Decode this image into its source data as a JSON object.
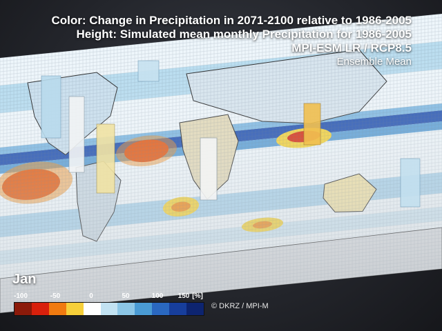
{
  "title": {
    "line1": "Color: Change in Precipitation in 2071-2100 relative to 1986-2005",
    "line2": "Height: Simulated mean monthly Precipitation for 1986-2005",
    "line3": "MPI-ESM LR / RCP8.5",
    "line4": "Ensemble Mean"
  },
  "month": "Jan",
  "legend": {
    "labels": [
      "-100",
      "-50",
      "0",
      "50",
      "100",
      "150",
      "[%]"
    ],
    "colors": [
      "#8b1a0a",
      "#d8200c",
      "#f07a10",
      "#f6cf3a",
      "#ffffff",
      "#c2e2f2",
      "#8cc6e6",
      "#4a9bd4",
      "#2a68c0",
      "#173e9c",
      "#0d2470"
    ]
  },
  "credit": "© DKRZ / MPI-M",
  "map_colors": {
    "ocean_neutral": "#eef6fb",
    "light_blue": "#9ccbe6",
    "mid_blue": "#4d97d2",
    "deep_blue": "#1b3e9a",
    "yellow": "#f3d23a",
    "orange": "#ef8a1b",
    "red": "#d52a10",
    "land": "#d9dcdf"
  }
}
